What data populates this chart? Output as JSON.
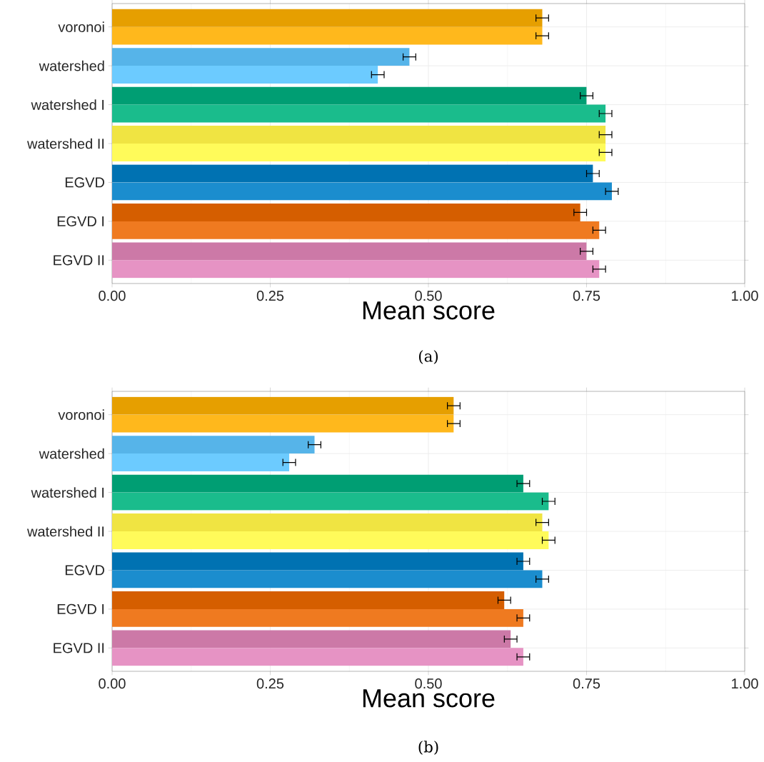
{
  "chart_data": [
    {
      "type": "bar",
      "orientation": "horizontal",
      "categories": [
        "voronoi",
        "watershed",
        "watershed I",
        "watershed II",
        "EGVD",
        "EGVD I",
        "EGVD II"
      ],
      "series": [
        {
          "colors": [
            "#e69f00",
            "#56b4e9",
            "#009e73",
            "#f0e442",
            "#0072b2",
            "#d55e00",
            "#cc79a7"
          ],
          "values": [
            0.68,
            0.47,
            0.75,
            0.78,
            0.76,
            0.74,
            0.75
          ],
          "errors": [
            0.01,
            0.01,
            0.01,
            0.01,
            0.01,
            0.01,
            0.01
          ]
        },
        {
          "colors": [
            "#ffb81c",
            "#6ccbff",
            "#1abc8c",
            "#fffb5a",
            "#1b8dce",
            "#ef7a20",
            "#e693c4"
          ],
          "values": [
            0.68,
            0.42,
            0.78,
            0.78,
            0.79,
            0.77,
            0.77
          ],
          "errors": [
            0.01,
            0.01,
            0.01,
            0.01,
            0.01,
            0.01,
            0.01
          ]
        }
      ],
      "xlim": [
        0,
        1
      ],
      "xticks": [
        {
          "value": 0,
          "label": "0.00"
        },
        {
          "value": 0.25,
          "label": "0.25"
        },
        {
          "value": 0.5,
          "label": "0.50"
        },
        {
          "value": 0.75,
          "label": "0.75"
        },
        {
          "value": 1,
          "label": "1.00"
        }
      ],
      "xlabel": "Mean score",
      "grid": true,
      "annotations": [
        "(a)"
      ]
    },
    {
      "type": "bar",
      "orientation": "horizontal",
      "categories": [
        "voronoi",
        "watershed",
        "watershed I",
        "watershed II",
        "EGVD",
        "EGVD I",
        "EGVD II"
      ],
      "series": [
        {
          "colors": [
            "#e69f00",
            "#56b4e9",
            "#009e73",
            "#f0e442",
            "#0072b2",
            "#d55e00",
            "#cc79a7"
          ],
          "values": [
            0.54,
            0.32,
            0.65,
            0.68,
            0.65,
            0.62,
            0.63
          ],
          "errors": [
            0.01,
            0.01,
            0.01,
            0.01,
            0.01,
            0.01,
            0.01
          ]
        },
        {
          "colors": [
            "#ffb81c",
            "#6ccbff",
            "#1abc8c",
            "#fffb5a",
            "#1b8dce",
            "#ef7a20",
            "#e693c4"
          ],
          "values": [
            0.54,
            0.28,
            0.69,
            0.69,
            0.68,
            0.65,
            0.65
          ],
          "errors": [
            0.01,
            0.01,
            0.01,
            0.01,
            0.01,
            0.01,
            0.01
          ]
        }
      ],
      "xlim": [
        0,
        1
      ],
      "xticks": [
        {
          "value": 0,
          "label": "0.00"
        },
        {
          "value": 0.25,
          "label": "0.25"
        },
        {
          "value": 0.5,
          "label": "0.50"
        },
        {
          "value": 0.75,
          "label": "0.75"
        },
        {
          "value": 1,
          "label": "1.00"
        }
      ],
      "xlabel": "Mean score",
      "grid": true,
      "annotations": [
        "(b)"
      ]
    }
  ]
}
